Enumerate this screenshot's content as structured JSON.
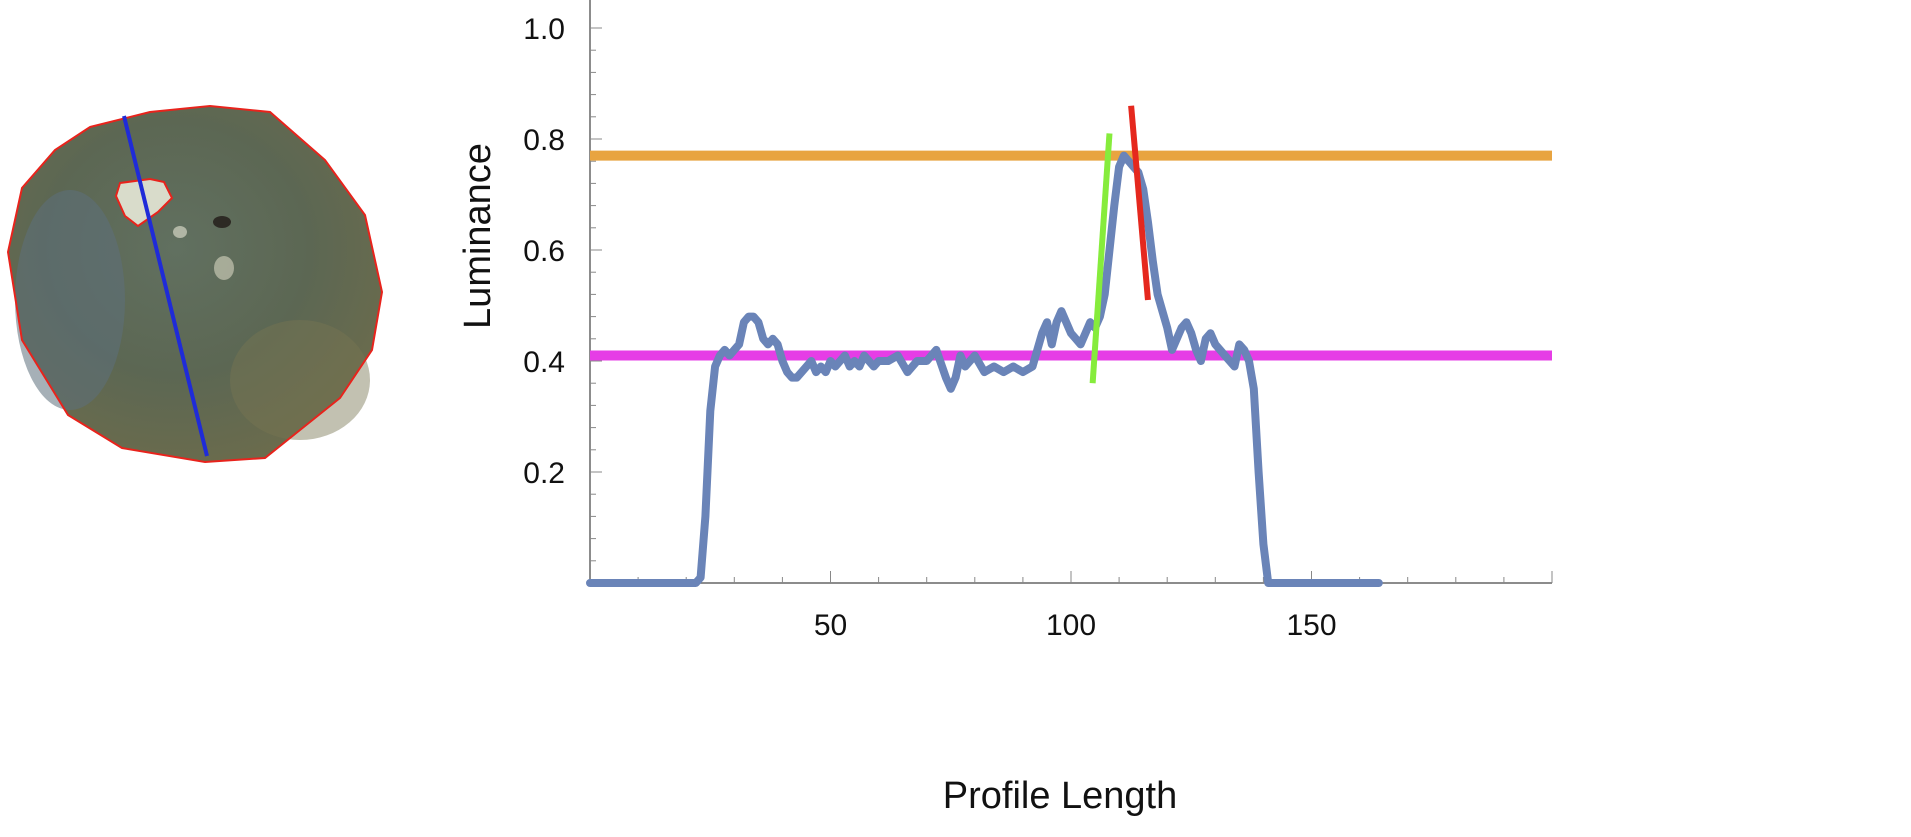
{
  "thumbnail": {
    "description_icon": "disc-with-profile-line-icon",
    "colors": {
      "outline": "#e8231c",
      "profile_line": "#1f2bd8",
      "disc_fill": "#5e6b58",
      "disc_shadow": "#4e5a52",
      "highlight": "#d9dccb"
    }
  },
  "chart_data": {
    "type": "line",
    "xlabel": "Profile Length",
    "ylabel": "Luminance",
    "xlim": [
      0,
      200
    ],
    "ylim": [
      0,
      1.0
    ],
    "x_ticks": [
      50,
      100,
      150
    ],
    "y_ticks": [
      0.2,
      0.4,
      0.6,
      0.8,
      1.0
    ],
    "x_tick_labels": [
      "50",
      "100",
      "150"
    ],
    "y_tick_labels": [
      "0.2",
      "0.4",
      "0.6",
      "0.8",
      "1.0"
    ],
    "series": [
      {
        "color": "#6a84b8",
        "x": [
          0,
          5,
          10,
          15,
          20,
          22,
          23,
          24,
          25,
          26,
          27,
          28,
          29,
          30,
          31,
          32,
          33,
          34,
          35,
          36,
          37,
          38,
          39,
          40,
          41,
          42,
          43,
          44,
          45,
          46,
          47,
          48,
          49,
          50,
          51,
          52,
          53,
          54,
          55,
          56,
          57,
          58,
          59,
          60,
          62,
          64,
          66,
          68,
          70,
          72,
          74,
          75,
          76,
          77,
          78,
          80,
          82,
          84,
          86,
          88,
          90,
          92,
          94,
          95,
          96,
          97,
          98,
          99,
          100,
          101,
          102,
          103,
          104,
          105,
          106,
          107,
          108,
          109,
          110,
          111,
          112,
          113,
          114,
          115,
          116,
          117,
          118,
          119,
          120,
          121,
          122,
          123,
          124,
          125,
          126,
          127,
          128,
          129,
          130,
          131,
          132,
          133,
          134,
          135,
          136,
          137,
          138,
          139,
          140,
          141,
          145,
          150,
          155,
          160,
          164
        ],
        "y": [
          0,
          0,
          0,
          0,
          0,
          0,
          0.01,
          0.12,
          0.31,
          0.39,
          0.41,
          0.42,
          0.41,
          0.42,
          0.43,
          0.47,
          0.48,
          0.48,
          0.47,
          0.44,
          0.43,
          0.44,
          0.43,
          0.4,
          0.38,
          0.37,
          0.37,
          0.38,
          0.39,
          0.4,
          0.38,
          0.39,
          0.38,
          0.4,
          0.39,
          0.4,
          0.41,
          0.39,
          0.4,
          0.39,
          0.41,
          0.4,
          0.39,
          0.4,
          0.4,
          0.41,
          0.38,
          0.4,
          0.4,
          0.42,
          0.37,
          0.35,
          0.37,
          0.41,
          0.39,
          0.41,
          0.38,
          0.39,
          0.38,
          0.39,
          0.38,
          0.39,
          0.45,
          0.47,
          0.43,
          0.47,
          0.49,
          0.47,
          0.45,
          0.44,
          0.43,
          0.45,
          0.47,
          0.46,
          0.48,
          0.52,
          0.6,
          0.68,
          0.75,
          0.77,
          0.76,
          0.75,
          0.74,
          0.71,
          0.65,
          0.58,
          0.52,
          0.49,
          0.46,
          0.42,
          0.44,
          0.46,
          0.47,
          0.45,
          0.42,
          0.4,
          0.44,
          0.45,
          0.43,
          0.42,
          0.41,
          0.4,
          0.39,
          0.43,
          0.42,
          0.4,
          0.35,
          0.2,
          0.07,
          0.0,
          0,
          0,
          0,
          0,
          0
        ]
      }
    ],
    "reference_lines": [
      {
        "color": "#e8a440",
        "y": 0.77
      },
      {
        "color": "#e63de6",
        "y": 0.41
      }
    ],
    "tangent_lines": [
      {
        "color": "#86ec3c",
        "x1": 104.5,
        "y1": 0.36,
        "x2": 108.0,
        "y2": 0.81
      },
      {
        "color": "#e5281e",
        "x1": 112.5,
        "y1": 0.86,
        "x2": 116.0,
        "y2": 0.51
      }
    ]
  }
}
